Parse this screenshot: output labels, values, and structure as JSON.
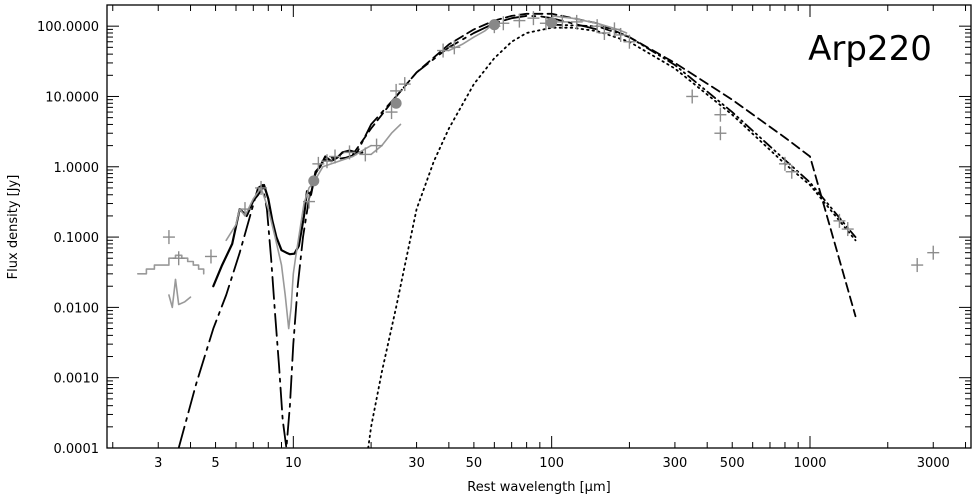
{
  "chart_data": {
    "type": "line",
    "title": "",
    "annotation": "Arp220",
    "xlabel": "Rest wavelength [μm]",
    "ylabel": "Flux density [Jy]",
    "x_scale": "log",
    "y_scale": "log",
    "xlim": [
      1.9,
      4200
    ],
    "ylim": [
      0.0001,
      200
    ],
    "x_ticks": [
      3,
      5,
      10,
      30,
      50,
      100,
      300,
      500,
      1000,
      3000
    ],
    "x_tick_labels": [
      "3",
      "5",
      "10",
      "30",
      "50",
      "100",
      "300",
      "500",
      "1000",
      "3000"
    ],
    "y_ticks": [
      0.0001,
      0.001,
      0.01,
      0.1,
      1,
      10,
      100
    ],
    "y_tick_labels": [
      "0.0001",
      "0.0010",
      "0.0100",
      "0.1000",
      "1.0000",
      "10.0000",
      "100.0000"
    ],
    "grid": false,
    "series": [
      {
        "style": "solid",
        "color": "#000000",
        "x": [
          4.9,
          5.3,
          5.8,
          6.2,
          6.6,
          7.0,
          7.3,
          7.7,
          8.0,
          8.3,
          8.6,
          9.0,
          9.4,
          9.7,
          10.1,
          10.5,
          11.0,
          11.3,
          11.7,
          12.2,
          12.7,
          13.3,
          14.0,
          14.8,
          15.5,
          16.5,
          17.5,
          18.5
        ],
        "y": [
          0.02,
          0.04,
          0.08,
          0.25,
          0.2,
          0.33,
          0.4,
          0.55,
          0.35,
          0.17,
          0.1,
          0.065,
          0.06,
          0.057,
          0.058,
          0.075,
          0.2,
          0.45,
          0.4,
          0.85,
          1.0,
          1.4,
          1.2,
          1.35,
          1.6,
          1.7,
          1.6,
          1.6
        ]
      },
      {
        "style": "dash-dot",
        "color": "#000000",
        "x": [
          3.6,
          4.2,
          4.9,
          5.5,
          6.2,
          6.8,
          7.3,
          7.6,
          7.9,
          8.2,
          8.5,
          8.8,
          9.1,
          9.4,
          9.7,
          10.0,
          10.4,
          10.9,
          11.5,
          12.2,
          13.0,
          14.0,
          15.0,
          16.0,
          17.5,
          20,
          25,
          30,
          40,
          50,
          60,
          70,
          80,
          90,
          100,
          120,
          150
        ],
        "y": [
          0.0001,
          0.0008,
          0.005,
          0.015,
          0.06,
          0.2,
          0.5,
          0.55,
          0.25,
          0.05,
          0.008,
          0.0015,
          0.00025,
          0.0001,
          0.0004,
          0.003,
          0.02,
          0.1,
          0.35,
          0.8,
          1.2,
          1.35,
          1.3,
          1.35,
          1.5,
          4,
          10,
          22,
          50,
          80,
          110,
          130,
          140,
          138,
          130,
          110,
          90
        ]
      },
      {
        "style": "dashed",
        "color": "#000000",
        "x": [
          17,
          20,
          25,
          30,
          40,
          50,
          60,
          70,
          80,
          100,
          150,
          200,
          300,
          500,
          800,
          1000,
          1500
        ],
        "y": [
          1.5,
          3.5,
          10,
          22,
          55,
          90,
          120,
          140,
          150,
          150,
          110,
          70,
          30,
          9,
          2.6,
          1.4,
          0.0075
        ]
      },
      {
        "style": "dotted",
        "color": "#000000",
        "x": [
          19.5,
          20,
          22,
          25,
          30,
          35,
          40,
          50,
          60,
          70,
          80,
          100,
          120,
          150,
          200,
          300,
          500,
          800,
          1000,
          1500
        ],
        "y": [
          0.0001,
          0.0002,
          0.0012,
          0.01,
          0.25,
          1.2,
          3.5,
          15,
          35,
          60,
          80,
          95,
          95,
          85,
          60,
          25,
          5.5,
          1.1,
          0.55,
          0.09
        ]
      },
      {
        "style": "dash-dot-dot",
        "color": "#000000",
        "x": [
          100,
          150,
          200,
          300,
          500,
          800,
          1000,
          1500
        ],
        "y": [
          105,
          100,
          70,
          28,
          6,
          1.25,
          0.6,
          0.1
        ]
      },
      {
        "style": "solid",
        "color": "#999999",
        "shape": "step",
        "x": [
          2.5,
          2.7,
          2.9,
          3.1,
          3.3,
          3.5,
          3.7,
          3.9,
          4.1,
          4.3,
          4.5
        ],
        "y": [
          0.03,
          0.035,
          0.04,
          0.04,
          0.05,
          0.055,
          0.05,
          0.045,
          0.04,
          0.035,
          0.03
        ]
      },
      {
        "style": "solid",
        "color": "#999999",
        "x": [
          3.3,
          3.4,
          3.5,
          3.6,
          3.8,
          4.0
        ],
        "y": [
          0.015,
          0.01,
          0.025,
          0.011,
          0.012,
          0.014
        ]
      },
      {
        "style": "solid",
        "color": "#999999",
        "x": [
          5.5,
          6.0,
          6.2,
          6.5,
          7.0,
          7.5,
          8.0,
          8.5,
          9.0,
          9.3,
          9.6,
          9.8,
          10.0,
          10.2,
          10.5,
          11.0,
          11.5,
          12.0,
          13.0,
          14.0,
          15.0,
          16.0,
          17.0,
          18.0,
          19.0,
          20.0
        ],
        "y": [
          0.09,
          0.15,
          0.25,
          0.2,
          0.35,
          0.5,
          0.25,
          0.1,
          0.04,
          0.015,
          0.005,
          0.01,
          0.03,
          0.05,
          0.1,
          0.3,
          0.5,
          0.6,
          1.0,
          1.1,
          1.2,
          1.3,
          1.4,
          1.6,
          1.8,
          2.0
        ]
      },
      {
        "style": "solid",
        "color": "#999999",
        "x": [
          40,
          45,
          50,
          55,
          60
        ],
        "y": [
          45,
          55,
          70,
          85,
          110
        ]
      },
      {
        "style": "solid",
        "color": "#999999",
        "x": [
          100,
          120,
          150,
          180,
          195
        ],
        "y": [
          140,
          130,
          110,
          90,
          80
        ]
      },
      {
        "style": "solid",
        "color": "#999999",
        "x": [
          20,
          22,
          24,
          26
        ],
        "y": [
          1.5,
          2,
          3,
          4
        ]
      }
    ],
    "points": [
      {
        "x": 3.3,
        "y": 0.1,
        "marker": "cross"
      },
      {
        "x": 3.6,
        "y": 0.05,
        "marker": "cross"
      },
      {
        "x": 4.8,
        "y": 0.053,
        "marker": "cross"
      },
      {
        "x": 6.5,
        "y": 0.25,
        "marker": "cross"
      },
      {
        "x": 7.5,
        "y": 0.5,
        "marker": "cross"
      },
      {
        "x": 11.5,
        "y": 0.32,
        "marker": "cross"
      },
      {
        "x": 12.5,
        "y": 1.1,
        "marker": "cross"
      },
      {
        "x": 13.5,
        "y": 1.2,
        "marker": "cross"
      },
      {
        "x": 14.5,
        "y": 1.4,
        "marker": "cross"
      },
      {
        "x": 16.5,
        "y": 1.6,
        "marker": "cross"
      },
      {
        "x": 19,
        "y": 1.5,
        "marker": "cross"
      },
      {
        "x": 21,
        "y": 2,
        "marker": "cross"
      },
      {
        "x": 24,
        "y": 6,
        "marker": "cross"
      },
      {
        "x": 25,
        "y": 12,
        "marker": "cross"
      },
      {
        "x": 27,
        "y": 15,
        "marker": "cross"
      },
      {
        "x": 38,
        "y": 45,
        "marker": "cross"
      },
      {
        "x": 42,
        "y": 50,
        "marker": "cross"
      },
      {
        "x": 60,
        "y": 100,
        "marker": "cross"
      },
      {
        "x": 65,
        "y": 110,
        "marker": "cross"
      },
      {
        "x": 75,
        "y": 120,
        "marker": "cross"
      },
      {
        "x": 85,
        "y": 130,
        "marker": "cross"
      },
      {
        "x": 95,
        "y": 110,
        "marker": "cross"
      },
      {
        "x": 100,
        "y": 120,
        "marker": "cross"
      },
      {
        "x": 110,
        "y": 115,
        "marker": "cross"
      },
      {
        "x": 125,
        "y": 115,
        "marker": "cross"
      },
      {
        "x": 150,
        "y": 100,
        "marker": "cross"
      },
      {
        "x": 160,
        "y": 80,
        "marker": "cross"
      },
      {
        "x": 175,
        "y": 90,
        "marker": "cross"
      },
      {
        "x": 185,
        "y": 75,
        "marker": "cross"
      },
      {
        "x": 200,
        "y": 60,
        "marker": "cross"
      },
      {
        "x": 350,
        "y": 10,
        "marker": "cross"
      },
      {
        "x": 450,
        "y": 5.5,
        "marker": "cross"
      },
      {
        "x": 450,
        "y": 3.0,
        "marker": "cross"
      },
      {
        "x": 800,
        "y": 1.1,
        "marker": "cross"
      },
      {
        "x": 850,
        "y": 0.85,
        "marker": "cross"
      },
      {
        "x": 1300,
        "y": 0.17,
        "marker": "cross"
      },
      {
        "x": 1400,
        "y": 0.13,
        "marker": "cross"
      },
      {
        "x": 2600,
        "y": 0.04,
        "marker": "cross"
      },
      {
        "x": 3000,
        "y": 0.06,
        "marker": "cross"
      },
      {
        "x": 12,
        "y": 0.63,
        "marker": "dot"
      },
      {
        "x": 25,
        "y": 8,
        "marker": "dot"
      },
      {
        "x": 60,
        "y": 105,
        "marker": "dot"
      },
      {
        "x": 100,
        "y": 112,
        "marker": "dot"
      }
    ]
  }
}
